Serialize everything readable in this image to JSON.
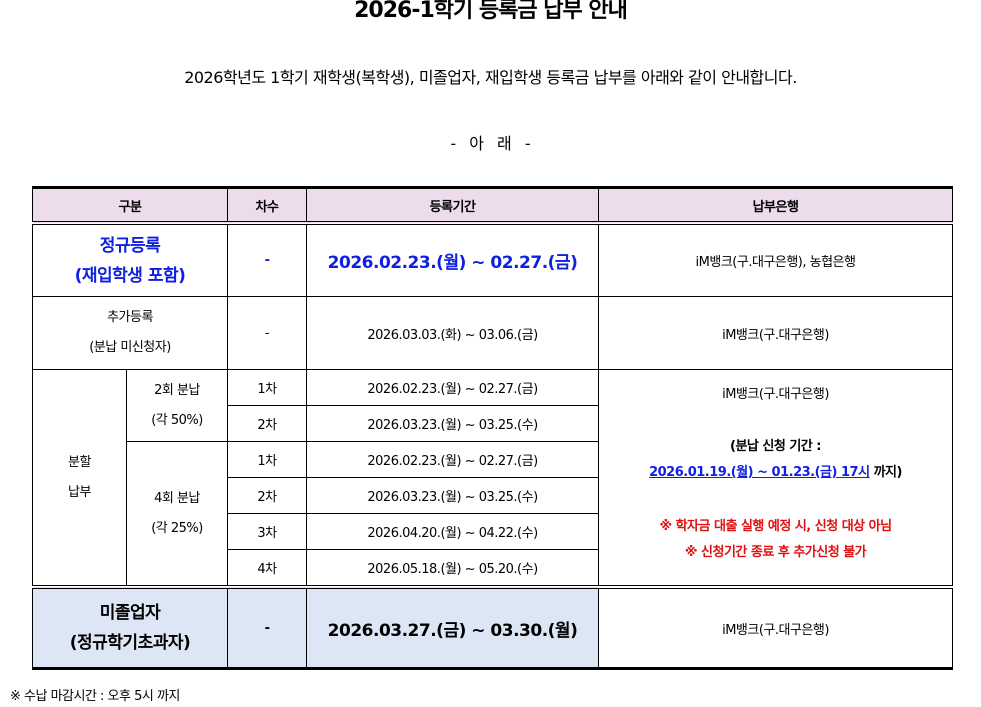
{
  "title": "2026-1학기 등록금 납부 안내",
  "intro": "2026학년도 1학기 재학생(복학생), 미졸업자, 재입학생 등록금 납부를 아래와 같이 안내합니다.",
  "section_mark": "- 아  래 -",
  "table": {
    "headers": [
      "구분",
      "차수",
      "등록기간",
      "납부은행"
    ],
    "regular": {
      "label1": "정규등록",
      "label2": "(재입학생 포함)",
      "round": "-",
      "period": "2026.02.23.(월) ~ 02.27.(금)",
      "bank": "iM뱅크(구.대구은행), 농협은행"
    },
    "additional": {
      "label1": "추가등록",
      "label2": "(분납 미신청자)",
      "round": "-",
      "period": "2026.03.03.(화) ~ 03.06.(금)",
      "bank": "iM뱅크(구.대구은행)"
    },
    "installment": {
      "label1": "분할",
      "label2": "납부",
      "two": {
        "label1": "2회 분납",
        "label2": "(각 50%)",
        "rows": [
          {
            "round": "1차",
            "period": "2026.02.23.(월) ~ 02.27.(금)"
          },
          {
            "round": "2차",
            "period": "2026.03.23.(월) ~ 03.25.(수)"
          }
        ]
      },
      "four": {
        "label1": "4회 분납",
        "label2": "(각 25%)",
        "rows": [
          {
            "round": "1차",
            "period": "2026.02.23.(월) ~ 02.27.(금)"
          },
          {
            "round": "2차",
            "period": "2026.03.23.(월) ~ 03.25.(수)"
          },
          {
            "round": "3차",
            "period": "2026.04.20.(월) ~ 04.22.(수)"
          },
          {
            "round": "4차",
            "period": "2026.05.18.(월) ~ 05.20.(수)"
          }
        ]
      },
      "bank": "iM뱅크(구.대구은행)",
      "apply_label": "(분납 신청 기간 :",
      "apply_period": "2026.01.19.(월) ~ 01.23.(금) 17시",
      "apply_suffix": " 까지)",
      "note1": "※ 학자금 대출 실행 예정 시, 신청 대상 아님",
      "note2": "※ 신청기간 종료 후 추가신청 불가"
    },
    "ungraduated": {
      "label1": "미졸업자",
      "label2": "(정규학기초과자)",
      "round": "-",
      "period": "2026.03.27.(금) ~ 03.30.(월)",
      "bank": "iM뱅크(구.대구은행)"
    }
  },
  "footer": "※ 수납 마감시간 : 오후 5시 까지",
  "colors": {
    "header_bg": "#ecdcec",
    "highlight_blue": "#1020e0",
    "note_red": "#e01010",
    "ungraduated_bg": "#dde6f5"
  }
}
